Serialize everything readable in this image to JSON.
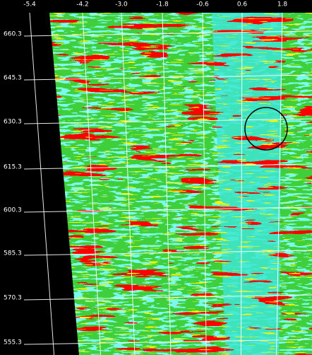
{
  "axes": {
    "top_labels": [
      "-5.4",
      "-4.2",
      "-3.0",
      "-1.8",
      "-0.6",
      "0.6",
      "1.8"
    ],
    "left_labels": [
      "660.3",
      "645.3",
      "630.3",
      "615.3",
      "600.3",
      "585.3",
      "570.3",
      "555.3"
    ]
  }
}
